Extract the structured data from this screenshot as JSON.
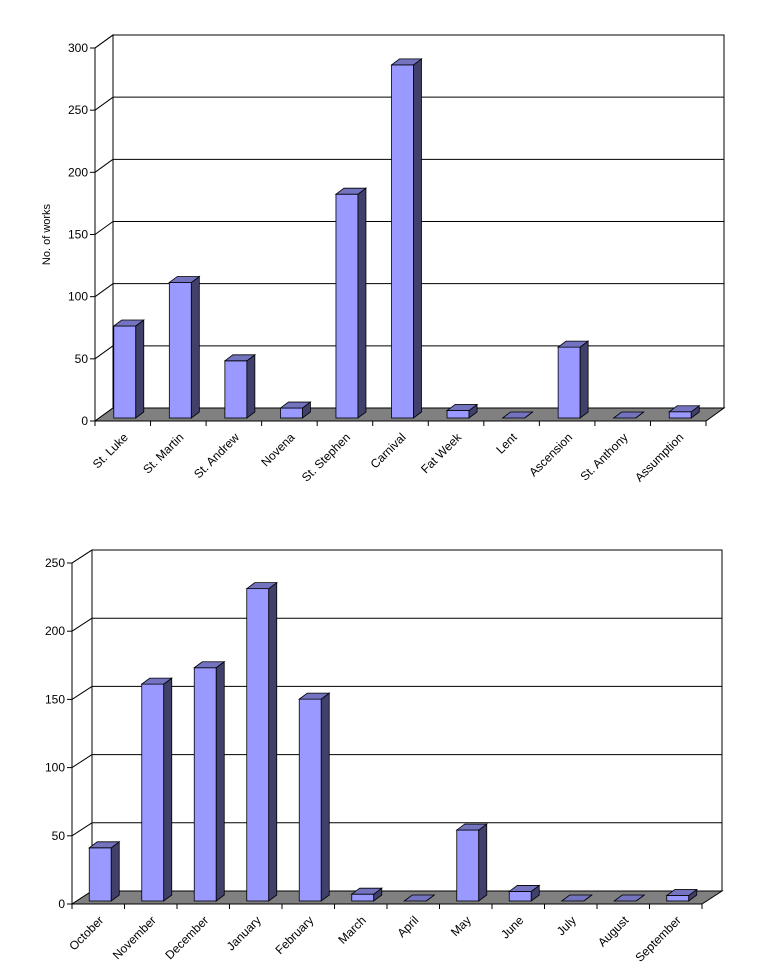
{
  "chart_data": [
    {
      "type": "bar",
      "title": "",
      "xlabel": "",
      "ylabel": "No. of works",
      "ylim": [
        0,
        300
      ],
      "yticks": [
        0,
        50,
        100,
        150,
        200,
        250,
        300
      ],
      "ytick_labels": [
        "0",
        "50",
        "100",
        "150",
        "200",
        "250",
        "300"
      ],
      "grid": true,
      "style": "3d",
      "bar_color": "#9999ff",
      "floor_color": "#808080",
      "categories": [
        "St. Luke",
        "St. Martin",
        "St. Andrew",
        "Novena",
        "St. Stephen",
        "Carnival",
        "Fat Week",
        "Lent",
        "Ascension",
        "St. Anthony",
        "Assumption"
      ],
      "values": [
        74,
        109,
        46,
        8,
        180,
        284,
        6,
        0,
        57,
        0,
        5
      ]
    },
    {
      "type": "bar",
      "title": "",
      "xlabel": "",
      "ylabel": "",
      "ylim": [
        0,
        250
      ],
      "yticks": [
        0,
        50,
        100,
        150,
        200,
        250
      ],
      "ytick_labels": [
        "0",
        "50",
        "100",
        "150",
        "200",
        "250"
      ],
      "grid": true,
      "style": "3d",
      "bar_color": "#9999ff",
      "floor_color": "#808080",
      "categories": [
        "October",
        "November",
        "December",
        "January",
        "February",
        "March",
        "April",
        "May",
        "June",
        "July",
        "August",
        "September"
      ],
      "values": [
        39,
        159,
        171,
        229,
        148,
        5,
        0,
        52,
        7,
        0,
        0,
        4
      ]
    }
  ]
}
